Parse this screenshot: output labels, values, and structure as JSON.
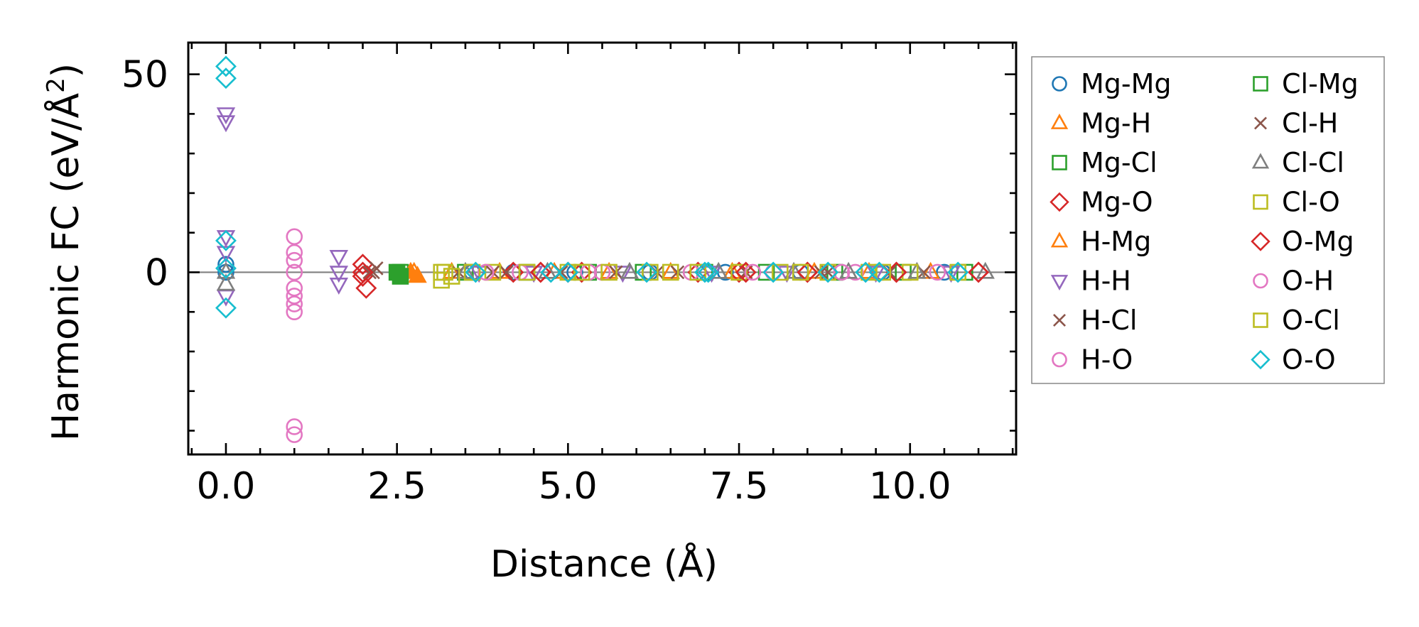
{
  "chart_data": {
    "type": "scatter",
    "xlabel": "Distance (Å)",
    "ylabel_prefix": "Harmonic FC (eV/Å",
    "ylabel_sup": "2",
    "ylabel_suffix": ")",
    "xlim": [
      -0.55,
      11.55
    ],
    "ylim": [
      -46,
      58
    ],
    "x_ticks": [
      0.0,
      2.5,
      5.0,
      7.5,
      10.0
    ],
    "x_tick_labels": [
      "0.0",
      "2.5",
      "5.0",
      "7.5",
      "10.0"
    ],
    "x_minor_step": 0.5,
    "y_ticks": [
      0,
      50
    ],
    "y_tick_labels": [
      "0",
      "50"
    ],
    "y_minor_step": 10,
    "reference_line_y": 0,
    "legend_position": "outside-right",
    "legend_columns": 2,
    "series": [
      {
        "name": "Mg-Mg",
        "marker": "circle",
        "color": "#1f77b4",
        "filled": false,
        "points": [
          [
            0,
            0
          ],
          [
            0,
            2
          ],
          [
            3.6,
            0
          ],
          [
            4.2,
            0
          ],
          [
            5.1,
            0
          ],
          [
            6.2,
            0
          ],
          [
            7.3,
            0
          ],
          [
            8.4,
            0
          ],
          [
            9.6,
            0
          ],
          [
            10.5,
            0
          ]
        ]
      },
      {
        "name": "Mg-H",
        "marker": "triangle-up",
        "color": "#ff7f0e",
        "filled": false,
        "points": [
          [
            2.75,
            0
          ],
          [
            3.3,
            0
          ],
          [
            4.0,
            0
          ],
          [
            4.8,
            0
          ],
          [
            5.6,
            0
          ],
          [
            6.5,
            0
          ],
          [
            7.4,
            0
          ],
          [
            8.6,
            0
          ],
          [
            9.4,
            0
          ],
          [
            10.3,
            0
          ]
        ]
      },
      {
        "name": "Mg-Cl",
        "marker": "square",
        "color": "#2ca02c",
        "filled": false,
        "points": [
          [
            2.55,
            0
          ],
          [
            3.5,
            0
          ],
          [
            4.4,
            0
          ],
          [
            5.3,
            0
          ],
          [
            6.1,
            0
          ],
          [
            7.0,
            0
          ],
          [
            7.9,
            0
          ],
          [
            8.9,
            0
          ],
          [
            9.9,
            0
          ],
          [
            10.8,
            0
          ]
        ]
      },
      {
        "name": "Mg-O",
        "marker": "diamond",
        "color": "#d62728",
        "filled": false,
        "points": [
          [
            2.0,
            2
          ],
          [
            2.0,
            -1
          ],
          [
            2.05,
            -4
          ],
          [
            4.2,
            0
          ],
          [
            4.6,
            0
          ],
          [
            5.2,
            0
          ],
          [
            6.9,
            0
          ],
          [
            7.5,
            0
          ],
          [
            8.5,
            0
          ],
          [
            9.8,
            0
          ],
          [
            11.0,
            0
          ]
        ]
      },
      {
        "name": "H-Mg",
        "marker": "triangle-up",
        "color": "#ff7f0e",
        "filled": true,
        "points": [
          [
            2.7,
            0
          ],
          [
            2.8,
            -1
          ]
        ]
      },
      {
        "name": "H-H",
        "marker": "triangle-down",
        "color": "#9467bd",
        "filled": false,
        "points": [
          [
            0,
            40
          ],
          [
            0,
            38
          ],
          [
            0,
            9
          ],
          [
            0,
            5
          ],
          [
            0,
            -6
          ],
          [
            1.65,
            4
          ],
          [
            1.65,
            0
          ],
          [
            1.65,
            -3
          ],
          [
            3.7,
            0
          ],
          [
            4.5,
            0
          ],
          [
            5.8,
            0
          ],
          [
            7.1,
            0
          ],
          [
            8.2,
            0
          ],
          [
            9.5,
            0
          ],
          [
            10.6,
            0
          ]
        ]
      },
      {
        "name": "H-Cl",
        "marker": "x",
        "color": "#8c564b",
        "filled": false,
        "points": [
          [
            2.15,
            0
          ],
          [
            2.2,
            1
          ],
          [
            3.4,
            0
          ],
          [
            4.1,
            0
          ],
          [
            4.9,
            0
          ],
          [
            5.7,
            0
          ],
          [
            6.6,
            0
          ],
          [
            7.6,
            0
          ],
          [
            8.7,
            0
          ],
          [
            9.7,
            0
          ],
          [
            10.2,
            0
          ]
        ]
      },
      {
        "name": "H-O",
        "marker": "circle",
        "color": "#e377c2",
        "filled": false,
        "points": [
          [
            1.0,
            9
          ],
          [
            1.0,
            5
          ],
          [
            1.0,
            3
          ],
          [
            1.0,
            0
          ],
          [
            1.0,
            -4
          ],
          [
            1.0,
            -6
          ],
          [
            1.0,
            -8
          ],
          [
            1.0,
            -10
          ],
          [
            1.0,
            -39
          ],
          [
            1.0,
            -41
          ],
          [
            4.3,
            0
          ],
          [
            5.5,
            0
          ],
          [
            6.8,
            0
          ],
          [
            8.0,
            0
          ],
          [
            9.2,
            0
          ],
          [
            10.4,
            0
          ]
        ]
      },
      {
        "name": "Cl-Mg",
        "marker": "square",
        "color": "#2ca02c",
        "filled": true,
        "points": [
          [
            2.5,
            0
          ],
          [
            2.55,
            -1
          ]
        ]
      },
      {
        "name": "Cl-H",
        "marker": "x",
        "color": "#8c564b",
        "filled": false,
        "points": [
          [
            2.1,
            0
          ],
          [
            3.9,
            0
          ],
          [
            6.3,
            0
          ],
          [
            8.8,
            0
          ]
        ]
      },
      {
        "name": "Cl-Cl",
        "marker": "triangle-up",
        "color": "#7f7f7f",
        "filled": false,
        "points": [
          [
            0,
            0
          ],
          [
            0,
            -3
          ],
          [
            3.5,
            0
          ],
          [
            4.7,
            0
          ],
          [
            5.9,
            0
          ],
          [
            7.2,
            0
          ],
          [
            8.3,
            0
          ],
          [
            9.1,
            0
          ],
          [
            10.1,
            0
          ],
          [
            11.1,
            0
          ]
        ]
      },
      {
        "name": "Cl-O",
        "marker": "square",
        "color": "#bcbd22",
        "filled": false,
        "points": [
          [
            3.15,
            0
          ],
          [
            3.15,
            -2
          ],
          [
            3.3,
            -1
          ],
          [
            3.9,
            0
          ],
          [
            4.4,
            0
          ],
          [
            5.0,
            0
          ],
          [
            5.6,
            0
          ],
          [
            6.2,
            0
          ],
          [
            6.9,
            0
          ],
          [
            7.5,
            0
          ],
          [
            8.1,
            0
          ],
          [
            8.8,
            0
          ],
          [
            9.4,
            0
          ],
          [
            10.0,
            0
          ],
          [
            10.7,
            0
          ]
        ]
      },
      {
        "name": "O-Mg",
        "marker": "diamond",
        "color": "#d62728",
        "filled": false,
        "points": [
          [
            2.0,
            0
          ],
          [
            4.6,
            0
          ],
          [
            5.0,
            0
          ],
          [
            7.6,
            0
          ],
          [
            8.5,
            0
          ],
          [
            9.8,
            0
          ],
          [
            11.0,
            0
          ]
        ]
      },
      {
        "name": "O-H",
        "marker": "circle",
        "color": "#e377c2",
        "filled": false,
        "points": [
          [
            3.8,
            0
          ],
          [
            5.3,
            0
          ],
          [
            7.7,
            0
          ],
          [
            9.0,
            0
          ]
        ]
      },
      {
        "name": "O-Cl",
        "marker": "square",
        "color": "#bcbd22",
        "filled": false,
        "points": [
          [
            3.2,
            0
          ],
          [
            3.6,
            0
          ],
          [
            5.2,
            0
          ],
          [
            6.5,
            0
          ],
          [
            8.4,
            0
          ],
          [
            9.6,
            0
          ]
        ]
      },
      {
        "name": "O-O",
        "marker": "diamond",
        "color": "#17becf",
        "filled": false,
        "points": [
          [
            0,
            52
          ],
          [
            0,
            49
          ],
          [
            0,
            8
          ],
          [
            0,
            1
          ],
          [
            0,
            -9
          ],
          [
            3.65,
            0
          ],
          [
            4.75,
            0
          ],
          [
            5.0,
            0
          ],
          [
            6.15,
            0
          ],
          [
            7.0,
            0
          ],
          [
            7.05,
            0
          ],
          [
            8.0,
            0
          ],
          [
            8.8,
            0
          ],
          [
            9.35,
            0
          ],
          [
            9.55,
            0
          ],
          [
            10.7,
            0
          ]
        ]
      }
    ]
  }
}
